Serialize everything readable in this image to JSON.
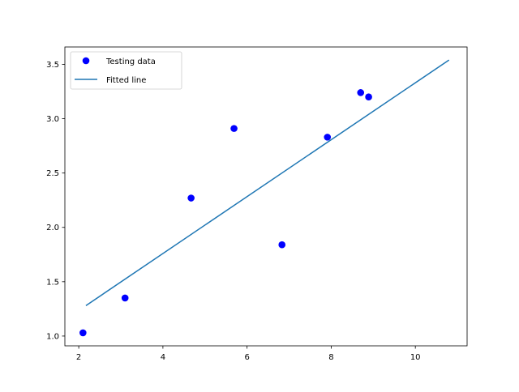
{
  "chart_data": {
    "type": "scatter",
    "title": "",
    "xlabel": "",
    "ylabel": "",
    "xlim": [
      1.67,
      11.23
    ],
    "ylim": [
      0.91,
      3.66
    ],
    "x_ticks": [
      "2",
      "4",
      "6",
      "8",
      "10"
    ],
    "y_ticks": [
      "1.0",
      "1.5",
      "2.0",
      "2.5",
      "3.0",
      "3.5"
    ],
    "x_tick_values": [
      2,
      4,
      6,
      8,
      10
    ],
    "y_tick_values": [
      1.0,
      1.5,
      2.0,
      2.5,
      3.0,
      3.5
    ],
    "grid": false,
    "legend_position": "upper-left",
    "series": [
      {
        "name": "Testing data",
        "kind": "scatter",
        "color": "#0000ff",
        "x": [
          2.1,
          3.1,
          4.67,
          5.69,
          6.83,
          7.91,
          8.7,
          8.89
        ],
        "y": [
          1.03,
          1.35,
          2.27,
          2.91,
          1.84,
          2.83,
          3.24,
          3.2
        ]
      },
      {
        "name": "Fitted line",
        "kind": "line",
        "color": "#1f77b4",
        "x": [
          2.17,
          10.8
        ],
        "y": [
          1.28,
          3.54
        ]
      }
    ]
  }
}
